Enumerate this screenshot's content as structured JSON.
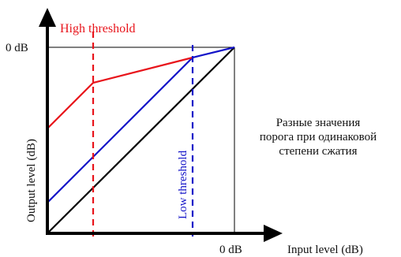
{
  "labels": {
    "zero_db_y": "0 dB",
    "zero_db_x": "0 dB",
    "x_axis": "Input level (dB)",
    "y_axis": "Output level (dB)",
    "high_threshold": "High threshold",
    "low_threshold": "Low threshold",
    "note_lines": [
      "Разные значения",
      "порога при одинаковой",
      "степени сжатия"
    ]
  },
  "colors": {
    "axis": "#000000",
    "unity_line": "#000000",
    "high_curve": "#e8141b",
    "low_curve": "#1414c8",
    "guide": "#000000"
  }
}
